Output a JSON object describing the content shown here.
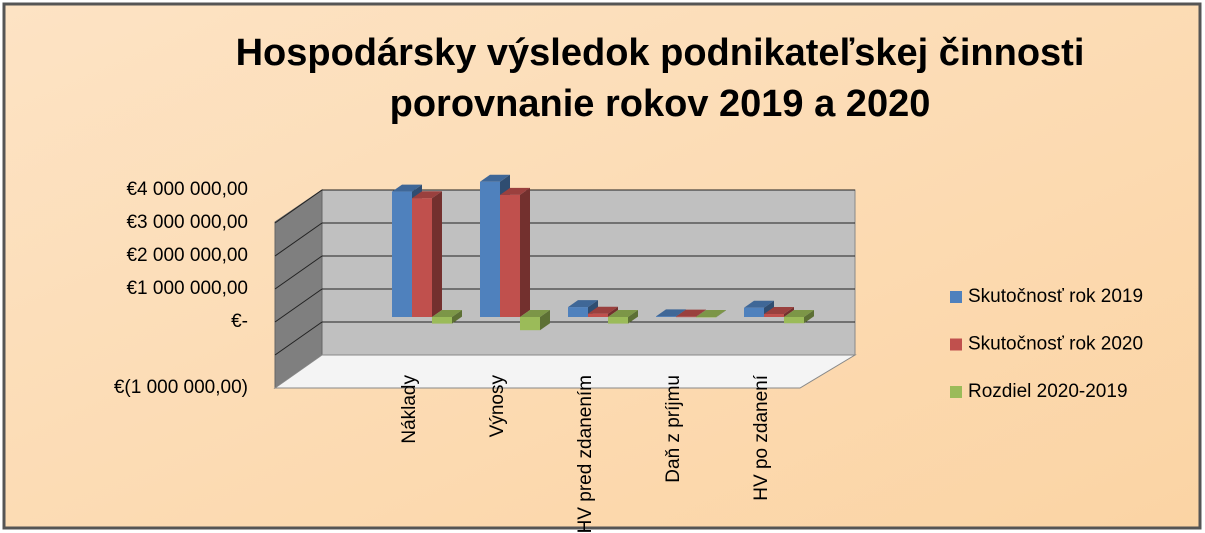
{
  "chart_data": {
    "type": "bar3d",
    "title": [
      "Hospodársky výsledok podnikateľskej činnosti",
      "porovnanie rokov 2019 a 2020"
    ],
    "categories": [
      "Náklady",
      "Výnosy",
      "HV pred zdanením",
      "Daň z príjmu",
      "HV po zdanení"
    ],
    "series": [
      {
        "name": "Skutočnosť rok 2019",
        "color": "#4f81bd",
        "values": [
          3800000,
          4100000,
          300000,
          20000,
          280000
        ]
      },
      {
        "name": "Skutočnosť rok 2020",
        "color": "#c0504d",
        "values": [
          3600000,
          3700000,
          100000,
          10000,
          90000
        ]
      },
      {
        "name": "Rozdiel 2020-2019",
        "color": "#9bbb59",
        "values": [
          -200000,
          -400000,
          -200000,
          -10000,
          -190000
        ]
      }
    ],
    "ylim": [
      -1000000,
      5000000
    ],
    "yticks": [
      {
        "value": -1000000,
        "label": "€(1 000 000,00)"
      },
      {
        "value": 0,
        "label": "€-"
      },
      {
        "value": 1000000,
        "label": "€1 000 000,00"
      },
      {
        "value": 2000000,
        "label": "€2 000 000,00"
      },
      {
        "value": 3000000,
        "label": "€3 000 000,00"
      },
      {
        "value": 4000000,
        "label": "€4 000 000,00"
      }
    ],
    "grid": true,
    "legend": "right"
  }
}
